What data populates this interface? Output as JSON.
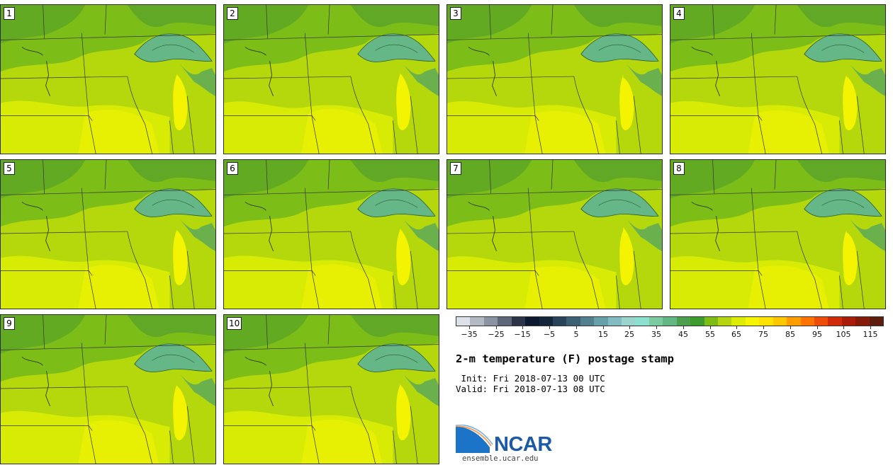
{
  "panels": [
    {
      "label": "1"
    },
    {
      "label": "2"
    },
    {
      "label": "3"
    },
    {
      "label": "4"
    },
    {
      "label": "5"
    },
    {
      "label": "6"
    },
    {
      "label": "7"
    },
    {
      "label": "8"
    },
    {
      "label": "9"
    },
    {
      "label": "10"
    }
  ],
  "colorbar": {
    "colors": [
      "#dde1e8",
      "#b3b9c3",
      "#8b93a2",
      "#5e6679",
      "#2d3449",
      "#0c1830",
      "#16263a",
      "#28435a",
      "#3d5f74",
      "#52808f",
      "#68a0aa",
      "#83bcc0",
      "#9bd4cd",
      "#8be0cf",
      "#7ccaa0",
      "#64b682",
      "#4c9f4c",
      "#3d9a2d",
      "#7dbb15",
      "#b4d50f",
      "#dded02",
      "#f6f500",
      "#ffe200",
      "#ffc700",
      "#ff9d00",
      "#ff7300",
      "#f04c09",
      "#cf2a0a",
      "#aa1c0a",
      "#851a09",
      "#5c1d0c"
    ],
    "ticks": [
      "-35",
      "-25",
      "-15",
      "-5",
      "5",
      "15",
      "25",
      "35",
      "45",
      "55",
      "65",
      "75",
      "85",
      "95",
      "105",
      "115"
    ],
    "range": [
      -40,
      120
    ]
  },
  "title": "2-m temperature (F) postage stamp",
  "init_line": " Init: Fri 2018-07-13 00 UTC",
  "valid_line": "Valid: Fri 2018-07-13 08 UTC",
  "logo": {
    "name": "NCAR",
    "url": "ensemble.ucar.edu"
  },
  "map_colors": {
    "cool": "#7cbd18",
    "dark": "#4e9a2e",
    "mid": "#b5d80d",
    "warm": "#dced04",
    "hot": "#f4f400",
    "lake": "#66b787",
    "lakedeep": "#4aa06a"
  }
}
